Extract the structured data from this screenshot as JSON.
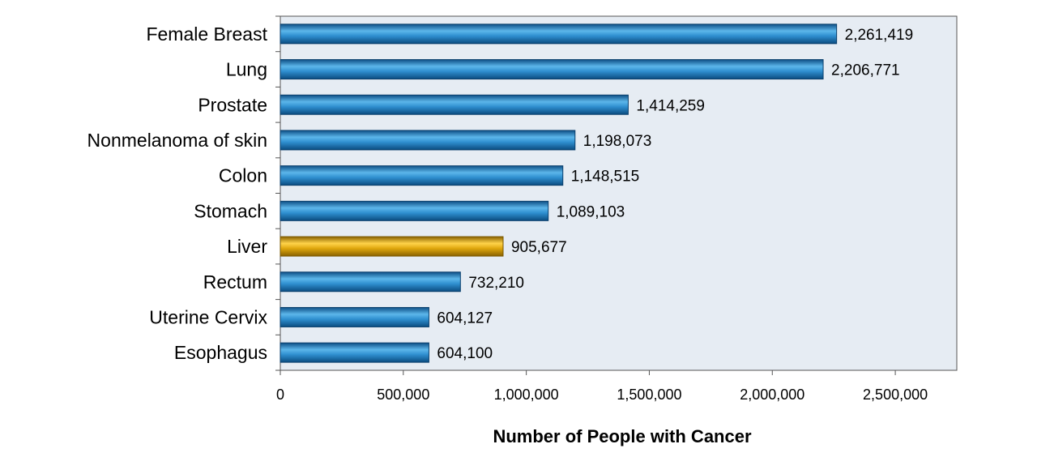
{
  "chart_data": {
    "type": "bar",
    "orientation": "horizontal",
    "categories": [
      "Female Breast",
      "Lung",
      "Prostate",
      "Nonmelanoma of skin",
      "Colon",
      "Stomach",
      "Liver",
      "Rectum",
      "Uterine Cervix",
      "Esophagus"
    ],
    "values": [
      2261419,
      2206771,
      1414259,
      1198073,
      1148515,
      1089103,
      905677,
      732210,
      604127,
      604100
    ],
    "value_labels": [
      "2,261,419",
      "2,206,771",
      "1,414,259",
      "1,198,073",
      "1,148,515",
      "1,089,103",
      "905,677",
      "732,210",
      "604,127",
      "604,100"
    ],
    "highlight_category": "Liver",
    "colors": {
      "bar": "#2f8fd0",
      "highlight": "#e0a80e",
      "plot_background": "#e6ecf3"
    },
    "xlabel": "Number of People with Cancer",
    "ylabel": "",
    "xlim": [
      0,
      2750000
    ],
    "xticks": [
      0,
      500000,
      1000000,
      1500000,
      2000000,
      2500000
    ],
    "xtick_labels": [
      "0",
      "500,000",
      "1,000,000",
      "1,500,000",
      "2,000,000",
      "2,500,000"
    ],
    "grid": false,
    "legend": "none"
  }
}
